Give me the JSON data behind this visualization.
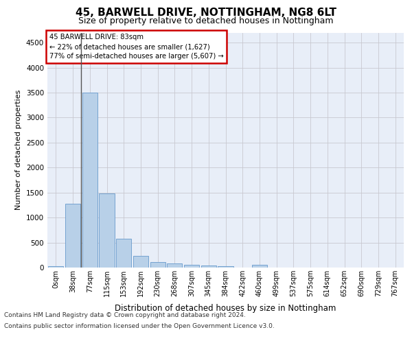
{
  "title1": "45, BARWELL DRIVE, NOTTINGHAM, NG8 6LT",
  "title2": "Size of property relative to detached houses in Nottingham",
  "xlabel": "Distribution of detached houses by size in Nottingham",
  "ylabel": "Number of detached properties",
  "bin_labels": [
    "0sqm",
    "38sqm",
    "77sqm",
    "115sqm",
    "153sqm",
    "192sqm",
    "230sqm",
    "268sqm",
    "307sqm",
    "345sqm",
    "384sqm",
    "422sqm",
    "460sqm",
    "499sqm",
    "537sqm",
    "575sqm",
    "614sqm",
    "652sqm",
    "690sqm",
    "729sqm",
    "767sqm"
  ],
  "bar_values": [
    30,
    1270,
    3500,
    1480,
    570,
    240,
    110,
    80,
    55,
    35,
    30,
    0,
    60,
    0,
    0,
    0,
    0,
    0,
    0,
    0,
    0
  ],
  "bar_color": "#b8d0e8",
  "bar_edge_color": "#6699cc",
  "vline_color": "#555555",
  "annotation_text": "45 BARWELL DRIVE: 83sqm\n← 22% of detached houses are smaller (1,627)\n77% of semi-detached houses are larger (5,607) →",
  "annotation_box_color": "#ffffff",
  "annotation_border_color": "#cc0000",
  "ylim": [
    0,
    4700
  ],
  "yticks": [
    0,
    500,
    1000,
    1500,
    2000,
    2500,
    3000,
    3500,
    4000,
    4500
  ],
  "plot_bg_color": "#e8eef8",
  "footer1": "Contains HM Land Registry data © Crown copyright and database right 2024.",
  "footer2": "Contains public sector information licensed under the Open Government Licence v3.0."
}
